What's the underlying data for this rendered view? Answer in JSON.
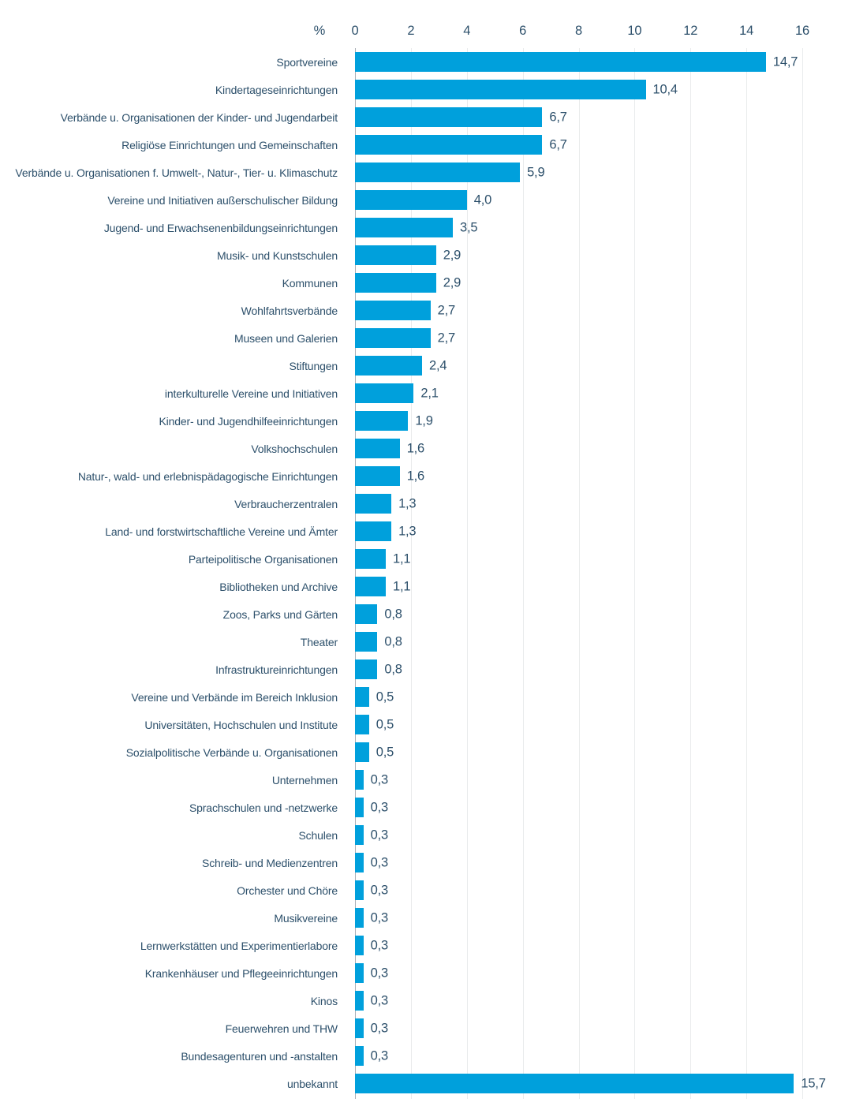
{
  "chart": {
    "unit_label": "%",
    "bar_color": "#00A0DC",
    "text_color": "#2D506B",
    "gridline_color": "#E9EBEC",
    "axis_line_color": "#A9AFB6"
  },
  "chart_data": {
    "type": "bar",
    "orientation": "horizontal",
    "title": "",
    "xlabel": "%",
    "ylabel": "",
    "xlim": [
      0,
      16
    ],
    "ticks": [
      0,
      2,
      4,
      6,
      8,
      10,
      12,
      14,
      16
    ],
    "grid": "vertical",
    "legend": "none",
    "categories": [
      "Sportvereine",
      "Kindertageseinrichtungen",
      "Verbände u. Organisationen der Kinder- und Jugendarbeit",
      "Religiöse Einrichtungen und Gemeinschaften",
      "Verbände u. Organisationen f. Umwelt-, Natur-, Tier- u. Klimaschutz",
      "Vereine und Initiativen außerschulischer Bildung",
      "Jugend- und Erwachsenenbildungseinrichtungen",
      "Musik- und Kunstschulen",
      "Kommunen",
      "Wohlfahrtsverbände",
      "Museen und Galerien",
      "Stiftungen",
      "interkulturelle Vereine und Initiativen",
      "Kinder- und Jugendhilfeeinrichtungen",
      "Volkshochschulen",
      "Natur-, wald- und erlebnispädagogische Einrichtungen",
      "Verbraucherzentralen",
      "Land- und forstwirtschaftliche Vereine und Ämter",
      "Parteipolitische Organisationen",
      "Bibliotheken und Archive",
      "Zoos, Parks und Gärten",
      "Theater",
      "Infrastruktureinrichtungen",
      "Vereine und Verbände im Bereich Inklusion",
      "Universitäten, Hochschulen und Institute",
      "Sozialpolitische Verbände u. Organisationen",
      "Unternehmen",
      "Sprachschulen und -netzwerke",
      "Schulen",
      "Schreib- und Medienzentren",
      "Orchester und Chöre",
      "Musikvereine",
      "Lernwerkstätten und Experimentierlabore",
      "Krankenhäuser und Pflegeeinrichtungen",
      "Kinos",
      "Feuerwehren und THW",
      "Bundesagenturen und -anstalten",
      "unbekannt"
    ],
    "values": [
      14.7,
      10.4,
      6.7,
      6.7,
      5.9,
      4.0,
      3.5,
      2.9,
      2.9,
      2.7,
      2.7,
      2.4,
      2.1,
      1.9,
      1.6,
      1.6,
      1.3,
      1.3,
      1.1,
      1.1,
      0.8,
      0.8,
      0.8,
      0.5,
      0.5,
      0.5,
      0.3,
      0.3,
      0.3,
      0.3,
      0.3,
      0.3,
      0.3,
      0.3,
      0.3,
      0.3,
      0.3,
      15.7
    ],
    "value_labels": [
      "14,7",
      "10,4",
      "6,7",
      "6,7",
      "5,9",
      "4,0",
      "3,5",
      "2,9",
      "2,9",
      "2,7",
      "2,7",
      "2,4",
      "2,1",
      "1,9",
      "1,6",
      "1,6",
      "1,3",
      "1,3",
      "1,1",
      "1,1",
      "0,8",
      "0,8",
      "0,8",
      "0,5",
      "0,5",
      "0,5",
      "0,3",
      "0,3",
      "0,3",
      "0,3",
      "0,3",
      "0,3",
      "0,3",
      "0,3",
      "0,3",
      "0,3",
      "0,3",
      "15,7"
    ]
  }
}
